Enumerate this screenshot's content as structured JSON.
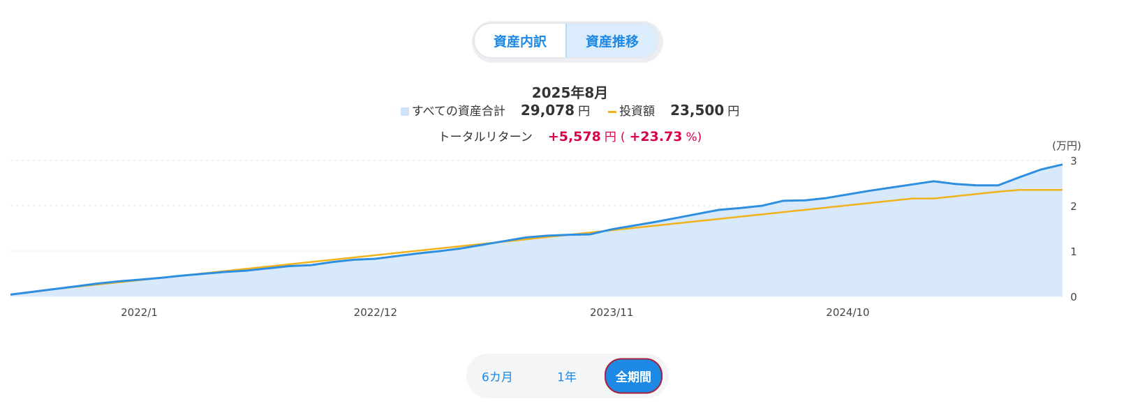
{
  "tabs": [
    {
      "label": "資産内訳",
      "active": false
    },
    {
      "label": "資産推移",
      "active": true
    }
  ],
  "summary": {
    "period": "2025年8月",
    "total_label": "すべての資産合計",
    "total_value": "29,078",
    "invest_label": "投資額",
    "invest_value": "23,500",
    "unit": "円",
    "return_label": "トータルリターン",
    "return_value": "+5,578",
    "return_open": "(",
    "return_pct": "+23.73",
    "return_close": "%)"
  },
  "ranges": [
    {
      "label": "6カ月",
      "active": false
    },
    {
      "label": "1年",
      "active": false
    },
    {
      "label": "全期間",
      "active": true
    }
  ],
  "colors": {
    "asset_line": "#2e8ee0",
    "asset_fill": "#d7e9fb",
    "invest_line": "#f2b21b",
    "grid": "#e6e6e6",
    "accent": "#1e88e5",
    "return": "#d6004c"
  },
  "chart_data": {
    "type": "area",
    "ylabel": "(万円)",
    "ylim": [
      0,
      3
    ],
    "yticks": [
      "0",
      "1",
      "2",
      "3"
    ],
    "x": [
      "2021/7",
      "2021/8",
      "2021/9",
      "2021/10",
      "2021/11",
      "2021/12",
      "2022/1",
      "2022/2",
      "2022/3",
      "2022/4",
      "2022/5",
      "2022/6",
      "2022/7",
      "2022/8",
      "2022/9",
      "2022/10",
      "2022/11",
      "2022/12",
      "2023/1",
      "2023/2",
      "2023/3",
      "2023/4",
      "2023/5",
      "2023/6",
      "2023/7",
      "2023/8",
      "2023/9",
      "2023/10",
      "2023/11",
      "2023/12",
      "2024/1",
      "2024/2",
      "2024/3",
      "2024/4",
      "2024/5",
      "2024/6",
      "2024/7",
      "2024/8",
      "2024/9",
      "2024/10",
      "2024/11",
      "2024/12",
      "2025/1",
      "2025/2",
      "2025/3",
      "2025/4",
      "2025/5",
      "2025/6",
      "2025/7",
      "2025/8"
    ],
    "xtick_labels": [
      "2022/1",
      "2022/12",
      "2023/11",
      "2024/10"
    ],
    "series": [
      {
        "name": "すべての資産合計",
        "values": [
          0.04,
          0.1,
          0.16,
          0.22,
          0.28,
          0.33,
          0.37,
          0.41,
          0.46,
          0.5,
          0.54,
          0.57,
          0.62,
          0.67,
          0.69,
          0.76,
          0.81,
          0.83,
          0.89,
          0.95,
          1.0,
          1.06,
          1.14,
          1.22,
          1.3,
          1.34,
          1.36,
          1.37,
          1.48,
          1.56,
          1.64,
          1.73,
          1.82,
          1.91,
          1.95,
          2.0,
          2.11,
          2.12,
          2.17,
          2.25,
          2.33,
          2.4,
          2.47,
          2.54,
          2.48,
          2.45,
          2.45,
          2.63,
          2.8,
          2.91
        ]
      },
      {
        "name": "投資額",
        "values": [
          0.04,
          0.1,
          0.16,
          0.21,
          0.26,
          0.31,
          0.36,
          0.41,
          0.46,
          0.51,
          0.56,
          0.61,
          0.66,
          0.71,
          0.76,
          0.81,
          0.86,
          0.91,
          0.96,
          1.01,
          1.06,
          1.11,
          1.16,
          1.21,
          1.26,
          1.31,
          1.36,
          1.41,
          1.46,
          1.51,
          1.56,
          1.61,
          1.66,
          1.71,
          1.76,
          1.81,
          1.86,
          1.91,
          1.96,
          2.01,
          2.06,
          2.11,
          2.16,
          2.16,
          2.21,
          2.26,
          2.31,
          2.35,
          2.35,
          2.35
        ]
      }
    ],
    "grid": true
  }
}
